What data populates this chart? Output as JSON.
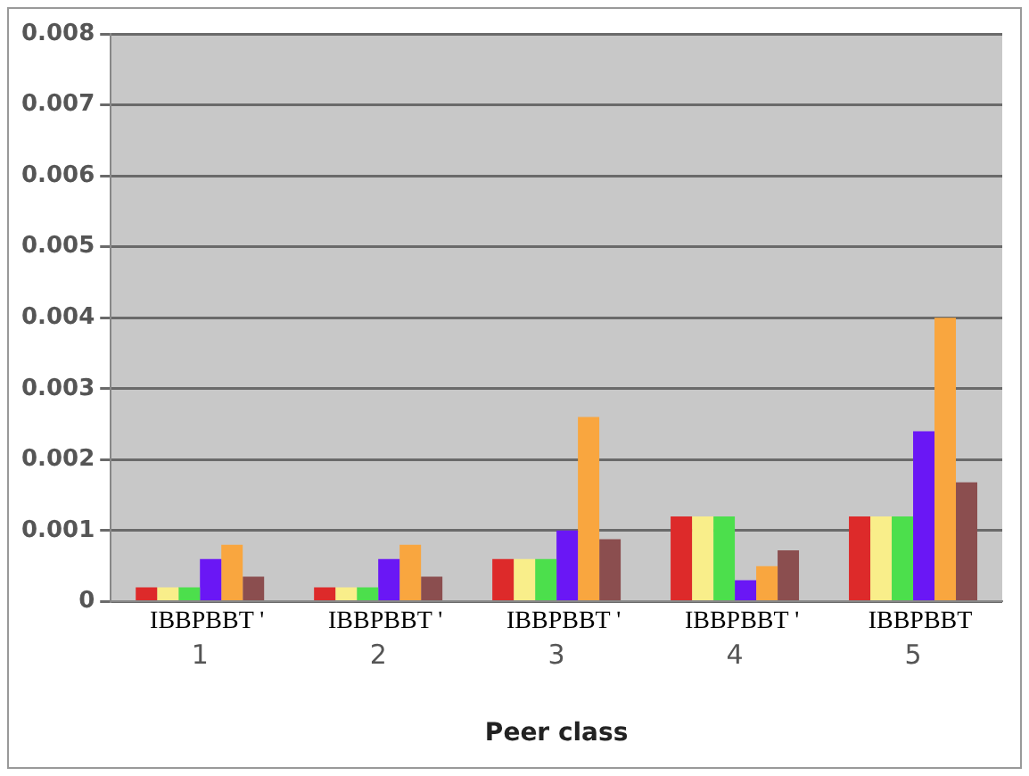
{
  "chart_data": {
    "type": "bar",
    "xlabel": "Peer class",
    "categories": [
      "1",
      "2",
      "3",
      "4",
      "5"
    ],
    "series": [
      {
        "color": "#dd2a2a",
        "values": [
          0.0002,
          0.0002,
          0.0006,
          0.0012,
          0.0012
        ]
      },
      {
        "color": "#f9ee8a",
        "values": [
          0.0002,
          0.0002,
          0.0006,
          0.0012,
          0.0012
        ]
      },
      {
        "color": "#4cdf4c",
        "values": [
          0.0002,
          0.0002,
          0.0006,
          0.0012,
          0.0012
        ]
      },
      {
        "color": "#6a17f5",
        "values": [
          0.0006,
          0.0006,
          0.001,
          0.0003,
          0.0024
        ]
      },
      {
        "color": "#f9a63f",
        "values": [
          0.0008,
          0.0008,
          0.0026,
          0.0005,
          0.004
        ]
      },
      {
        "color": "#8b4e4f",
        "values": [
          0.00035,
          0.00035,
          0.00088,
          0.00072,
          0.00168
        ]
      }
    ],
    "ylim": [
      0,
      0.008
    ],
    "yticks": [
      0,
      0.001,
      0.002,
      0.003,
      0.004,
      0.005,
      0.006,
      0.007,
      0.008
    ],
    "grid": "y",
    "legend": false,
    "annotations": [
      "IBBPBBT '",
      "IBBPBBT '",
      "IBBPBBT '",
      "IBBPBBT '",
      "IBBPBBT"
    ]
  }
}
